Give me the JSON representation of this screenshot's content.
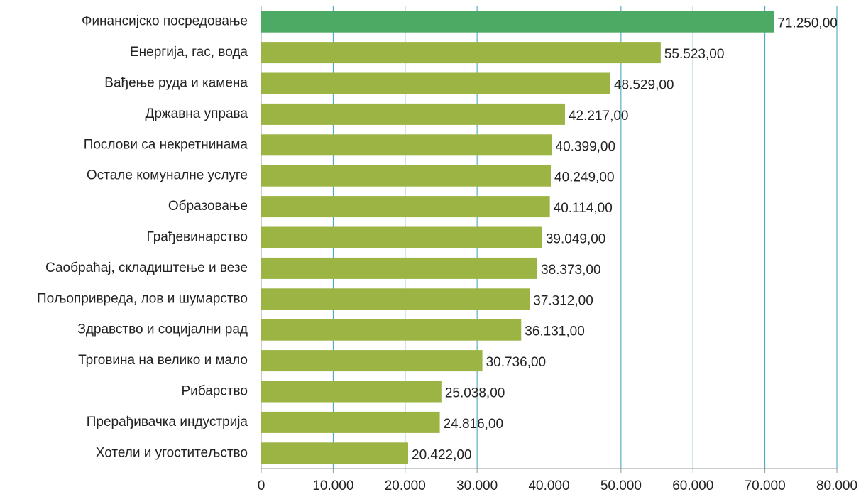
{
  "chart_data": {
    "type": "hbar",
    "categories": [
      "Финансијско посредовање",
      "Енергија, гас, вода",
      "Вађење руда и камена",
      "Државна управа",
      "Послови са некретнинама",
      "Остале комуналне услуге",
      "Образовање",
      "Грађевинарство",
      "Саобраћај, складиштење и везе",
      "Пољопривреда, лов и шумарство",
      "Здравство и социјални рад",
      "Трговина на велико и мало",
      "Рибарство",
      "Прерађивачка индустрија",
      "Хотели и угоститељство"
    ],
    "values": [
      71250,
      55523,
      48529,
      42217,
      40399,
      40249,
      40114,
      39049,
      38373,
      37312,
      36131,
      30736,
      25038,
      24816,
      20422
    ],
    "value_labels": [
      "71.250,00",
      "55.523,00",
      "48.529,00",
      "42.217,00",
      "40.399,00",
      "40.249,00",
      "40.114,00",
      "39.049,00",
      "38.373,00",
      "37.312,00",
      "36.131,00",
      "30.736,00",
      "25.038,00",
      "24.816,00",
      "20.422,00"
    ],
    "colors": [
      "#4caa64",
      "#9bb444",
      "#9bb444",
      "#9bb444",
      "#9bb444",
      "#9bb444",
      "#9bb444",
      "#9bb444",
      "#9bb444",
      "#9bb444",
      "#9bb444",
      "#9bb444",
      "#9bb444",
      "#9bb444",
      "#9bb444"
    ],
    "grid_color": "#3aa0b8",
    "xlim": [
      0,
      80000
    ],
    "xticks": [
      0,
      {
        "value": 10000,
        "label": "10.000"
      },
      {
        "value": 20000,
        "label": "20.000"
      },
      {
        "value": 30000,
        "label": "30.000"
      },
      {
        "value": 40000,
        "label": "40.000"
      },
      {
        "value": 50000,
        "label": "50.000"
      },
      {
        "value": 60000,
        "label": "60.000"
      },
      {
        "value": 70000,
        "label": "70.000"
      },
      {
        "value": 80000,
        "label": "80.000"
      }
    ],
    "grid": true
  }
}
